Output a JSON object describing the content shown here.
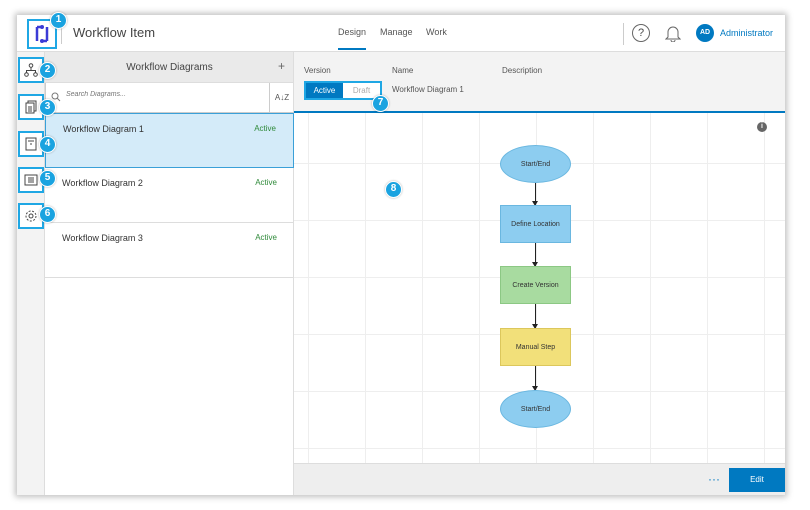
{
  "header": {
    "title": "Workflow Item",
    "nav": [
      {
        "label": "Design"
      },
      {
        "label": "Manage"
      },
      {
        "label": "Work"
      }
    ],
    "help": "?",
    "avatar": "AD",
    "user": "Administrator"
  },
  "panel": {
    "title": "Workflow Diagrams",
    "add": "+",
    "search_placeholder": "Search Diagrams...",
    "sort": "A↓Z",
    "items": [
      {
        "name": "Workflow Diagram 1",
        "status": "Active"
      },
      {
        "name": "Workflow Diagram 2",
        "status": "Active"
      },
      {
        "name": "Workflow Diagram 3",
        "status": "Active"
      }
    ]
  },
  "meta": {
    "version_label": "Version",
    "name_label": "Name",
    "description_label": "Description",
    "active": "Active",
    "draft": "Draft",
    "name_value": "Workflow Diagram 1"
  },
  "diagram": {
    "nodes": [
      "Start/End",
      "Define Location",
      "Create Version",
      "Manual Step",
      "Start/End"
    ],
    "info": "i"
  },
  "footer": {
    "more": "···",
    "edit": "Edit"
  },
  "callouts": [
    "1",
    "2",
    "3",
    "4",
    "5",
    "6",
    "7",
    "8"
  ],
  "colors": {
    "accent": "#0079c1",
    "callout": "#1aa3e0",
    "step_blue": "#8dcdf0",
    "step_green": "#a8dba0",
    "step_yellow": "#f2e07a"
  }
}
